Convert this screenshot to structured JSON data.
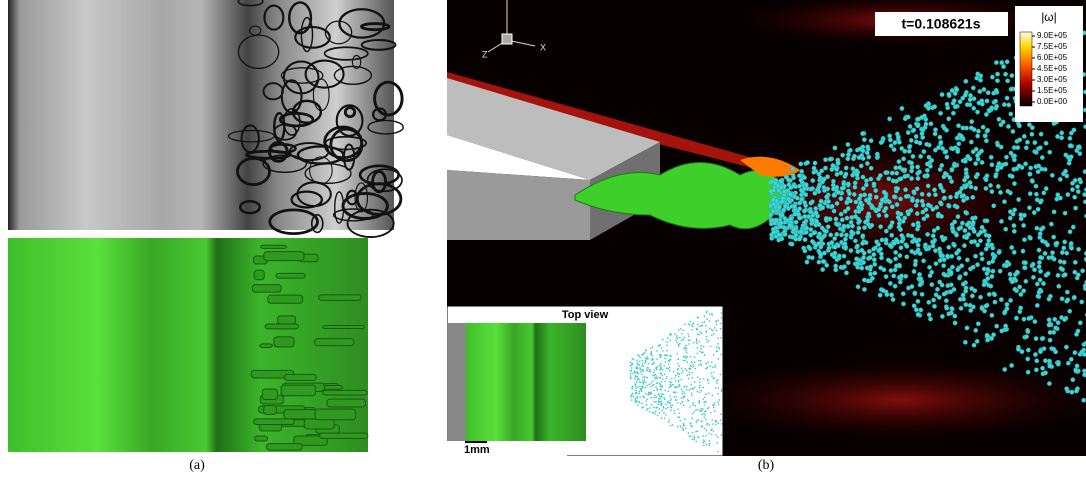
{
  "panels": [
    {
      "label": "(a)"
    },
    {
      "label": "(b)",
      "time_label": "t=0.108621s",
      "axes": {
        "z": "Z",
        "x": "X"
      },
      "colorbar": {
        "title": "|ω|",
        "ticks": [
          "9.0E+05",
          "7.5E+05",
          "6.0E+05",
          "4.5E+05",
          "3.0E+05",
          "1.5E+05",
          "0.0E+00"
        ]
      },
      "inset": {
        "title": "Top view",
        "scale_bar": "1mm"
      }
    }
  ]
}
